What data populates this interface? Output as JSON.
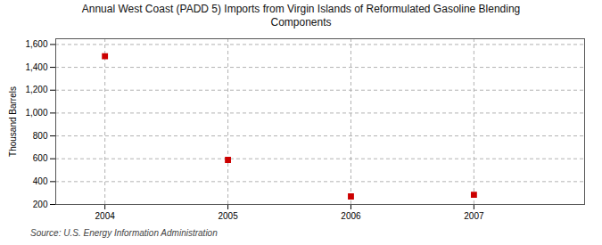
{
  "chart_data": {
    "type": "scatter",
    "title": "Annual West Coast (PADD 5) Imports from Virgin Islands of Reformulated Gasoline Blending\nComponents",
    "ylabel": "Thousand Barrels",
    "annotations": [
      "Source: U.S. Energy Information Administration"
    ],
    "x": [
      2004,
      2005,
      2006,
      2007
    ],
    "values": [
      1497,
      590,
      270,
      285
    ],
    "color": "#cc0000",
    "marker": "square",
    "xlim": [
      2003.6,
      2007.9
    ],
    "xticks": [
      2004,
      2005,
      2006,
      2007
    ],
    "ylim": [
      200,
      1650
    ],
    "yticks": [
      200,
      400,
      600,
      800,
      {
        "value": 1000,
        "label": "1,000"
      },
      {
        "value": 1200,
        "label": "1,200"
      },
      {
        "value": 1400,
        "label": "1,400"
      },
      {
        "value": 1600,
        "label": "1,600"
      }
    ],
    "grid": true
  }
}
